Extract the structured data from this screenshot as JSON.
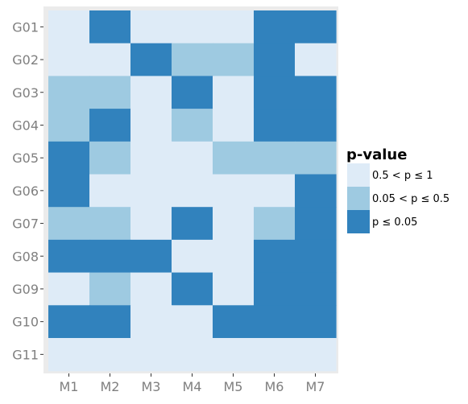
{
  "chart_data": {
    "type": "heatmap",
    "x_categories": [
      "M1",
      "M2",
      "M3",
      "M4",
      "M5",
      "M6",
      "M7"
    ],
    "y_categories": [
      "G01",
      "G02",
      "G03",
      "G04",
      "G05",
      "G06",
      "G07",
      "G08",
      "G09",
      "G10",
      "G11"
    ],
    "values": [
      [
        0,
        2,
        0,
        0,
        0,
        2,
        2
      ],
      [
        0,
        0,
        2,
        1,
        1,
        2,
        0
      ],
      [
        1,
        1,
        0,
        2,
        0,
        2,
        2
      ],
      [
        1,
        2,
        0,
        1,
        0,
        2,
        2
      ],
      [
        2,
        1,
        0,
        0,
        1,
        1,
        1
      ],
      [
        2,
        0,
        0,
        0,
        0,
        0,
        2
      ],
      [
        1,
        1,
        0,
        2,
        0,
        1,
        2
      ],
      [
        2,
        2,
        2,
        0,
        0,
        2,
        2
      ],
      [
        0,
        1,
        0,
        2,
        0,
        2,
        2
      ],
      [
        2,
        2,
        0,
        0,
        2,
        2,
        2
      ],
      [
        0,
        0,
        0,
        0,
        0,
        0,
        0
      ]
    ],
    "legend": {
      "title": "p-value",
      "position": "right",
      "entries": [
        {
          "label": "0.5 < p ≤ 1",
          "color": "#deebf7"
        },
        {
          "label": "0.05 < p ≤ 0.5",
          "color": "#9ecae1"
        },
        {
          "label": "p ≤ 0.05",
          "color": "#3182bd"
        }
      ]
    },
    "title": "",
    "xlabel": "",
    "ylabel": "",
    "grid": false,
    "panel_background": "#ebebeb"
  }
}
